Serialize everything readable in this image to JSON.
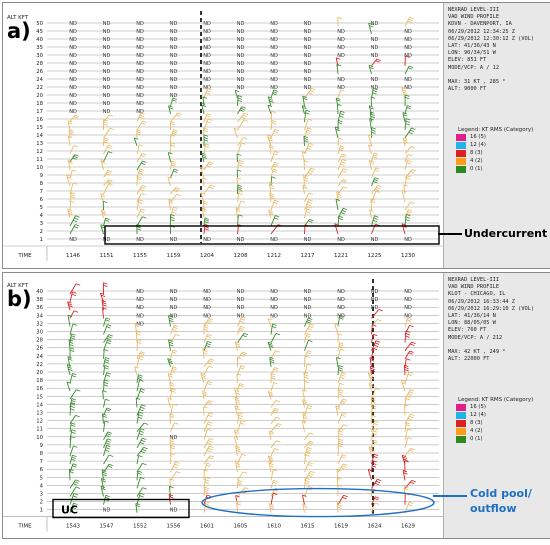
{
  "colors": {
    "nd_text": "#333333",
    "grid": "#9a9a9a",
    "green": "#3a8a2e",
    "tan": "#e8b966",
    "red": "#d62020",
    "cyan": "#20b6e0",
    "magenta": "#e0207a",
    "callout_blue": "#1f6fc4"
  },
  "legend_title": "Legend: KT RMS (Category)",
  "legend_items": [
    {
      "label": "16 (5)",
      "color": "#e01e8c"
    },
    {
      "label": "12 (4)",
      "color": "#22b4e6"
    },
    {
      "label": "8 (3)",
      "color": "#e02020"
    },
    {
      "label": "4 (2)",
      "color": "#ff9c1a"
    },
    {
      "label": "0 (1)",
      "color": "#2e8a1f"
    }
  ],
  "panel_a": {
    "tag": "a)",
    "alt_header": "ALT KFT",
    "time_label": "TIME",
    "alt_labels": [
      "50",
      "45",
      "40",
      "35",
      "30",
      "28",
      "26",
      "24",
      "22",
      "20",
      "18",
      "17",
      "16",
      "15",
      "14",
      "13",
      "12",
      "11",
      "10",
      "9",
      "8",
      "7",
      "6",
      "5",
      "4",
      "3",
      "2",
      "1"
    ],
    "times": [
      "1146",
      "1151",
      "1155",
      "1159",
      "1204",
      "1208",
      "1212",
      "1217",
      "1221",
      "1225",
      "1230"
    ],
    "header_lines": [
      "NEXRAD LEVEL-III",
      "VAD WIND PROFILE",
      "KDVN - DAVENPORT, IA",
      "06/29/2012 12:34:25 Z",
      "06/29/2012 12:30:12 Z (VOL)",
      "LAT: 41/36/43 N",
      "LON: 90/34/51 W",
      "ELEV: 851 FT",
      "MODE/VCP: A / 12",
      "",
      "MAX: 31 KT , 285 °",
      "ALT: 9000 FT"
    ],
    "callout": "Undercurrent",
    "nd": "ND"
  },
  "panel_b": {
    "tag": "b)",
    "alt_header": "ALT KFT",
    "time_label": "TIME",
    "alt_labels": [
      "40",
      "38",
      "36",
      "34",
      "32",
      "30",
      "28",
      "26",
      "24",
      "22",
      "20",
      "18",
      "16",
      "15",
      "14",
      "13",
      "12",
      "11",
      "10",
      "9",
      "8",
      "7",
      "6",
      "5",
      "4",
      "3",
      "2",
      "1"
    ],
    "times": [
      "1543",
      "1547",
      "1552",
      "1556",
      "1601",
      "1605",
      "1610",
      "1615",
      "1619",
      "1624",
      "1629"
    ],
    "header_lines": [
      "NEXRAD LEVEL-III",
      "VAD WIND PROFILE",
      "KLOT - CHICAGO, IL",
      "06/29/2012 16:33:44 Z",
      "06/29/2012 16:29:10 Z (VOL)",
      "LAT: 41/36/14 N",
      "LON: 88/05/05 W",
      "ELEV: 760 FT",
      "MODE/VCP: A / 212",
      "",
      "MAX: 42 KT , 249 °",
      "ALT: 22000 FT"
    ],
    "uc_label": "UC",
    "callout": "Cold pool/ outflow",
    "nd": "ND"
  }
}
